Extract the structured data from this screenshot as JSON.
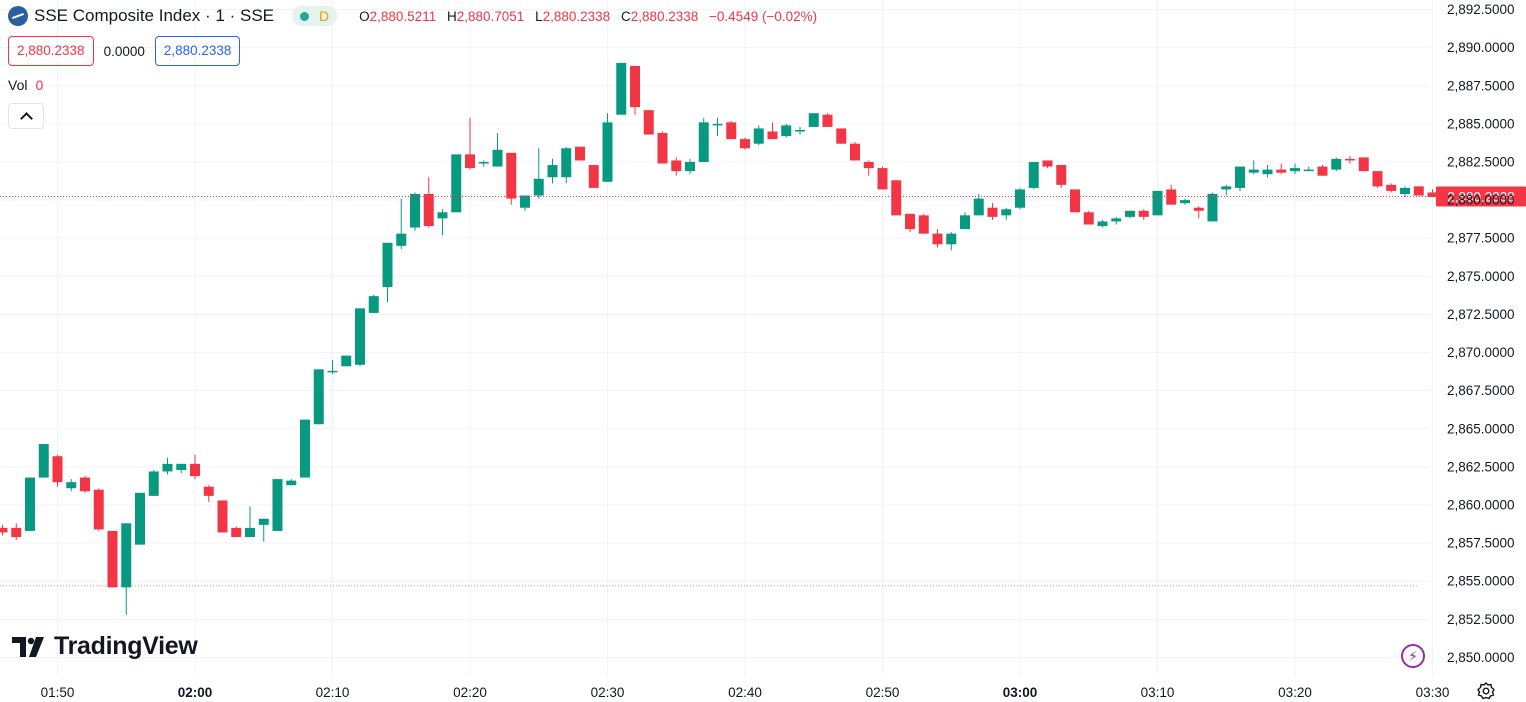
{
  "header": {
    "symbol_title": "SSE Composite Index · 1 · SSE",
    "market_status_letter": "D",
    "ohlc": [
      {
        "key": "O",
        "value": "2,880.5211"
      },
      {
        "key": "H",
        "value": "2,880.7051"
      },
      {
        "key": "L",
        "value": "2,880.2338"
      },
      {
        "key": "C",
        "value": "2,880.2338"
      }
    ],
    "change": "−0.4549 (−0.02%)"
  },
  "price_row": {
    "sell_price": "2,880.2338",
    "spread": "0.0000",
    "buy_price": "2,880.2338"
  },
  "volume": {
    "label": "Vol",
    "value": "0"
  },
  "brand": {
    "name": "TradingView"
  },
  "icons": {
    "symbol_logo": "sse-logo-icon",
    "collapse": "chevron-up-icon",
    "brand": "tradingview-logo-icon",
    "quick": "lightning-icon",
    "settings": "gear-icon"
  },
  "colors": {
    "up": "#089981",
    "down": "#f23645",
    "price_line": "#f23645"
  },
  "chart_data": {
    "type": "candlestick",
    "title": "SSE Composite Index · 1 · SSE",
    "y_ticks": [
      "2,850.0000",
      "2,852.5000",
      "2,855.0000",
      "2,857.5000",
      "2,860.0000",
      "2,862.5000",
      "2,865.0000",
      "2,867.5000",
      "2,870.0000",
      "2,872.5000",
      "2,875.0000",
      "2,877.5000",
      "2,880.0000",
      "2,882.5000",
      "2,885.0000",
      "2,887.5000",
      "2,890.0000",
      "2,892.5000"
    ],
    "x_ticks": [
      {
        "label": "01:50",
        "bold": false,
        "min": 110
      },
      {
        "label": "02:00",
        "bold": true,
        "min": 120
      },
      {
        "label": "02:10",
        "bold": false,
        "min": 130
      },
      {
        "label": "02:20",
        "bold": false,
        "min": 140
      },
      {
        "label": "02:30",
        "bold": false,
        "min": 150
      },
      {
        "label": "02:40",
        "bold": false,
        "min": 160
      },
      {
        "label": "02:50",
        "bold": false,
        "min": 170
      },
      {
        "label": "03:00",
        "bold": true,
        "min": 180
      },
      {
        "label": "03:10",
        "bold": false,
        "min": 190
      },
      {
        "label": "03:20",
        "bold": false,
        "min": 200
      },
      {
        "label": "03:30",
        "bold": false,
        "min": 210
      }
    ],
    "ylim": [
      2849.9,
      2892.6
    ],
    "current_price": 2880.2338,
    "current_price_label": "2,880.2338",
    "reference_price": 2854.7,
    "candles": [
      {
        "t": 106,
        "o": 2858.5,
        "h": 2858.7,
        "l": 2858.0,
        "c": 2858.2
      },
      {
        "t": 107,
        "o": 2858.5,
        "h": 2858.8,
        "l": 2857.7,
        "c": 2857.9
      },
      {
        "t": 108,
        "o": 2858.3,
        "h": 2861.8,
        "l": 2858.3,
        "c": 2861.8
      },
      {
        "t": 109,
        "o": 2861.8,
        "h": 2864.0,
        "l": 2861.8,
        "c": 2864.0
      },
      {
        "t": 110,
        "o": 2863.2,
        "h": 2863.3,
        "l": 2861.2,
        "c": 2861.5
      },
      {
        "t": 111,
        "o": 2861.1,
        "h": 2861.7,
        "l": 2860.9,
        "c": 2861.5
      },
      {
        "t": 112,
        "o": 2861.8,
        "h": 2861.9,
        "l": 2860.8,
        "c": 2860.9
      },
      {
        "t": 113,
        "o": 2861.0,
        "h": 2861.1,
        "l": 2858.3,
        "c": 2858.4
      },
      {
        "t": 114,
        "o": 2858.3,
        "h": 2858.3,
        "l": 2854.6,
        "c": 2854.6
      },
      {
        "t": 115,
        "o": 2854.6,
        "h": 2858.8,
        "l": 2852.8,
        "c": 2858.8
      },
      {
        "t": 116,
        "o": 2857.4,
        "h": 2860.8,
        "l": 2857.4,
        "c": 2860.8
      },
      {
        "t": 117,
        "o": 2860.6,
        "h": 2862.3,
        "l": 2860.6,
        "c": 2862.2
      },
      {
        "t": 118,
        "o": 2862.2,
        "h": 2863.1,
        "l": 2862.0,
        "c": 2862.7
      },
      {
        "t": 119,
        "o": 2862.3,
        "h": 2862.7,
        "l": 2862.1,
        "c": 2862.7
      },
      {
        "t": 120,
        "o": 2862.7,
        "h": 2863.3,
        "l": 2861.7,
        "c": 2861.9
      },
      {
        "t": 121,
        "o": 2861.2,
        "h": 2861.3,
        "l": 2860.2,
        "c": 2860.6
      },
      {
        "t": 122,
        "o": 2860.3,
        "h": 2860.3,
        "l": 2858.2,
        "c": 2858.2
      },
      {
        "t": 123,
        "o": 2858.5,
        "h": 2858.6,
        "l": 2857.9,
        "c": 2857.9
      },
      {
        "t": 124,
        "o": 2857.9,
        "h": 2859.9,
        "l": 2857.9,
        "c": 2858.5
      },
      {
        "t": 125,
        "o": 2858.7,
        "h": 2859.1,
        "l": 2857.6,
        "c": 2859.1
      },
      {
        "t": 126,
        "o": 2858.3,
        "h": 2861.7,
        "l": 2858.3,
        "c": 2861.7
      },
      {
        "t": 127,
        "o": 2861.3,
        "h": 2861.7,
        "l": 2861.3,
        "c": 2861.6
      },
      {
        "t": 128,
        "o": 2861.8,
        "h": 2865.6,
        "l": 2861.8,
        "c": 2865.6
      },
      {
        "t": 129,
        "o": 2865.3,
        "h": 2868.9,
        "l": 2865.3,
        "c": 2868.9
      },
      {
        "t": 130,
        "o": 2868.8,
        "h": 2869.5,
        "l": 2868.6,
        "c": 2868.8
      },
      {
        "t": 131,
        "o": 2869.1,
        "h": 2869.8,
        "l": 2869.1,
        "c": 2869.8
      },
      {
        "t": 132,
        "o": 2869.2,
        "h": 2872.9,
        "l": 2869.1,
        "c": 2872.9
      },
      {
        "t": 133,
        "o": 2872.6,
        "h": 2873.8,
        "l": 2872.6,
        "c": 2873.7
      },
      {
        "t": 134,
        "o": 2874.3,
        "h": 2877.2,
        "l": 2873.3,
        "c": 2877.2
      },
      {
        "t": 135,
        "o": 2877.0,
        "h": 2880.1,
        "l": 2876.8,
        "c": 2877.8
      },
      {
        "t": 136,
        "o": 2878.2,
        "h": 2880.5,
        "l": 2878.0,
        "c": 2880.4
      },
      {
        "t": 137,
        "o": 2880.4,
        "h": 2881.5,
        "l": 2878.2,
        "c": 2878.3
      },
      {
        "t": 138,
        "o": 2878.8,
        "h": 2879.4,
        "l": 2877.7,
        "c": 2879.2
      },
      {
        "t": 139,
        "o": 2879.2,
        "h": 2883.0,
        "l": 2879.2,
        "c": 2883.0
      },
      {
        "t": 140,
        "o": 2883.0,
        "h": 2885.4,
        "l": 2882.0,
        "c": 2882.1
      },
      {
        "t": 141,
        "o": 2882.4,
        "h": 2882.6,
        "l": 2882.2,
        "c": 2882.5
      },
      {
        "t": 142,
        "o": 2882.2,
        "h": 2884.4,
        "l": 2882.2,
        "c": 2883.3
      },
      {
        "t": 143,
        "o": 2883.1,
        "h": 2883.1,
        "l": 2879.7,
        "c": 2880.1
      },
      {
        "t": 144,
        "o": 2879.5,
        "h": 2880.3,
        "l": 2879.3,
        "c": 2880.3
      },
      {
        "t": 145,
        "o": 2880.3,
        "h": 2883.4,
        "l": 2880.1,
        "c": 2881.4
      },
      {
        "t": 146,
        "o": 2881.5,
        "h": 2882.7,
        "l": 2881.1,
        "c": 2882.3
      },
      {
        "t": 147,
        "o": 2881.5,
        "h": 2883.5,
        "l": 2881.1,
        "c": 2883.4
      },
      {
        "t": 148,
        "o": 2883.5,
        "h": 2883.5,
        "l": 2882.6,
        "c": 2882.6
      },
      {
        "t": 149,
        "o": 2882.3,
        "h": 2882.3,
        "l": 2880.8,
        "c": 2880.8
      },
      {
        "t": 150,
        "o": 2881.2,
        "h": 2885.7,
        "l": 2881.2,
        "c": 2885.1
      },
      {
        "t": 151,
        "o": 2885.6,
        "h": 2889.0,
        "l": 2885.6,
        "c": 2889.0
      },
      {
        "t": 152,
        "o": 2888.8,
        "h": 2888.8,
        "l": 2885.6,
        "c": 2886.1
      },
      {
        "t": 153,
        "o": 2885.9,
        "h": 2885.9,
        "l": 2884.3,
        "c": 2884.3
      },
      {
        "t": 154,
        "o": 2884.4,
        "h": 2884.5,
        "l": 2882.4,
        "c": 2882.4
      },
      {
        "t": 155,
        "o": 2882.6,
        "h": 2882.8,
        "l": 2881.6,
        "c": 2881.9
      },
      {
        "t": 156,
        "o": 2881.9,
        "h": 2882.7,
        "l": 2881.7,
        "c": 2882.5
      },
      {
        "t": 157,
        "o": 2882.5,
        "h": 2885.4,
        "l": 2882.5,
        "c": 2885.1
      },
      {
        "t": 158,
        "o": 2885.0,
        "h": 2885.4,
        "l": 2884.2,
        "c": 2885.0
      },
      {
        "t": 159,
        "o": 2885.1,
        "h": 2885.2,
        "l": 2884.0,
        "c": 2884.0
      },
      {
        "t": 160,
        "o": 2884.0,
        "h": 2884.1,
        "l": 2883.3,
        "c": 2883.4
      },
      {
        "t": 161,
        "o": 2883.7,
        "h": 2884.9,
        "l": 2883.6,
        "c": 2884.7
      },
      {
        "t": 162,
        "o": 2884.5,
        "h": 2885.1,
        "l": 2884.0,
        "c": 2884.0
      },
      {
        "t": 163,
        "o": 2884.2,
        "h": 2885.0,
        "l": 2884.1,
        "c": 2884.9
      },
      {
        "t": 164,
        "o": 2884.5,
        "h": 2884.8,
        "l": 2884.3,
        "c": 2884.6
      },
      {
        "t": 165,
        "o": 2884.8,
        "h": 2885.7,
        "l": 2884.8,
        "c": 2885.7
      },
      {
        "t": 166,
        "o": 2885.6,
        "h": 2885.7,
        "l": 2884.8,
        "c": 2884.8
      },
      {
        "t": 167,
        "o": 2884.7,
        "h": 2884.7,
        "l": 2883.7,
        "c": 2883.7
      },
      {
        "t": 168,
        "o": 2883.7,
        "h": 2883.8,
        "l": 2882.6,
        "c": 2882.6
      },
      {
        "t": 169,
        "o": 2882.5,
        "h": 2882.6,
        "l": 2881.6,
        "c": 2882.1
      },
      {
        "t": 170,
        "o": 2882.1,
        "h": 2882.2,
        "l": 2880.7,
        "c": 2880.7
      },
      {
        "t": 171,
        "o": 2881.3,
        "h": 2881.3,
        "l": 2879.0,
        "c": 2879.0
      },
      {
        "t": 172,
        "o": 2879.1,
        "h": 2879.1,
        "l": 2877.9,
        "c": 2878.1
      },
      {
        "t": 173,
        "o": 2879.0,
        "h": 2879.1,
        "l": 2877.8,
        "c": 2877.8
      },
      {
        "t": 174,
        "o": 2877.8,
        "h": 2878.1,
        "l": 2876.9,
        "c": 2877.1
      },
      {
        "t": 175,
        "o": 2877.1,
        "h": 2877.9,
        "l": 2876.7,
        "c": 2877.8
      },
      {
        "t": 176,
        "o": 2878.1,
        "h": 2879.2,
        "l": 2878.1,
        "c": 2879.0
      },
      {
        "t": 177,
        "o": 2879.0,
        "h": 2880.4,
        "l": 2879.0,
        "c": 2880.1
      },
      {
        "t": 178,
        "o": 2879.5,
        "h": 2879.8,
        "l": 2878.7,
        "c": 2878.9
      },
      {
        "t": 179,
        "o": 2879.0,
        "h": 2879.5,
        "l": 2878.7,
        "c": 2879.4
      },
      {
        "t": 180,
        "o": 2879.5,
        "h": 2880.8,
        "l": 2879.4,
        "c": 2880.7
      },
      {
        "t": 181,
        "o": 2880.8,
        "h": 2882.5,
        "l": 2880.7,
        "c": 2882.5
      },
      {
        "t": 182,
        "o": 2882.6,
        "h": 2882.6,
        "l": 2882.1,
        "c": 2882.2
      },
      {
        "t": 183,
        "o": 2882.3,
        "h": 2882.3,
        "l": 2880.8,
        "c": 2881.0
      },
      {
        "t": 184,
        "o": 2880.7,
        "h": 2880.7,
        "l": 2879.2,
        "c": 2879.2
      },
      {
        "t": 185,
        "o": 2879.2,
        "h": 2879.3,
        "l": 2878.4,
        "c": 2878.4
      },
      {
        "t": 186,
        "o": 2878.3,
        "h": 2878.7,
        "l": 2878.2,
        "c": 2878.6
      },
      {
        "t": 187,
        "o": 2878.6,
        "h": 2878.9,
        "l": 2878.4,
        "c": 2878.8
      },
      {
        "t": 188,
        "o": 2878.9,
        "h": 2879.3,
        "l": 2878.8,
        "c": 2879.3
      },
      {
        "t": 189,
        "o": 2879.3,
        "h": 2879.4,
        "l": 2878.7,
        "c": 2878.9
      },
      {
        "t": 190,
        "o": 2879.0,
        "h": 2880.6,
        "l": 2879.0,
        "c": 2880.6
      },
      {
        "t": 191,
        "o": 2880.7,
        "h": 2881.0,
        "l": 2879.7,
        "c": 2879.7
      },
      {
        "t": 192,
        "o": 2879.8,
        "h": 2880.1,
        "l": 2879.7,
        "c": 2880.0
      },
      {
        "t": 193,
        "o": 2879.5,
        "h": 2879.6,
        "l": 2878.8,
        "c": 2879.3
      },
      {
        "t": 194,
        "o": 2878.6,
        "h": 2880.5,
        "l": 2878.6,
        "c": 2880.4
      },
      {
        "t": 195,
        "o": 2880.7,
        "h": 2881.0,
        "l": 2880.3,
        "c": 2880.9
      },
      {
        "t": 196,
        "o": 2880.8,
        "h": 2882.2,
        "l": 2880.6,
        "c": 2882.2
      },
      {
        "t": 197,
        "o": 2881.8,
        "h": 2882.6,
        "l": 2881.7,
        "c": 2882.0
      },
      {
        "t": 198,
        "o": 2881.7,
        "h": 2882.3,
        "l": 2881.5,
        "c": 2882.0
      },
      {
        "t": 199,
        "o": 2882.0,
        "h": 2882.4,
        "l": 2881.7,
        "c": 2881.8
      },
      {
        "t": 200,
        "o": 2881.9,
        "h": 2882.4,
        "l": 2881.7,
        "c": 2882.1
      },
      {
        "t": 201,
        "o": 2881.9,
        "h": 2882.2,
        "l": 2881.9,
        "c": 2882.0
      },
      {
        "t": 202,
        "o": 2882.2,
        "h": 2882.3,
        "l": 2881.6,
        "c": 2881.6
      },
      {
        "t": 203,
        "o": 2882.0,
        "h": 2882.8,
        "l": 2881.9,
        "c": 2882.7
      },
      {
        "t": 204,
        "o": 2882.7,
        "h": 2882.9,
        "l": 2882.4,
        "c": 2882.6
      },
      {
        "t": 205,
        "o": 2882.8,
        "h": 2882.8,
        "l": 2881.9,
        "c": 2881.9
      },
      {
        "t": 206,
        "o": 2881.9,
        "h": 2881.9,
        "l": 2880.8,
        "c": 2880.9
      },
      {
        "t": 207,
        "o": 2881.0,
        "h": 2881.1,
        "l": 2880.5,
        "c": 2880.6
      },
      {
        "t": 208,
        "o": 2880.4,
        "h": 2880.9,
        "l": 2880.2,
        "c": 2880.8
      },
      {
        "t": 209,
        "o": 2880.9,
        "h": 2880.9,
        "l": 2880.3,
        "c": 2880.3
      },
      {
        "t": 210,
        "o": 2880.5,
        "h": 2880.7,
        "l": 2880.2,
        "c": 2880.2
      }
    ]
  }
}
